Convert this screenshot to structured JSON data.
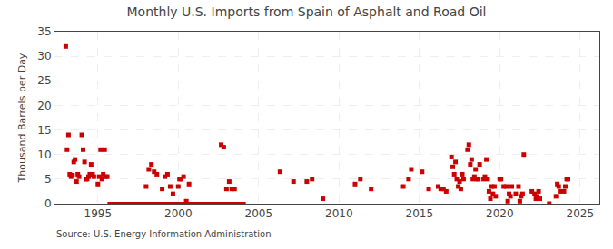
{
  "chart_data": {
    "type": "scatter",
    "title": "Monthly U.S. Imports from Spain of Asphalt and Road Oil",
    "y_label": "Thousand Barrels per Day",
    "annotations": [
      "Source: U.S. Energy Information Administration"
    ],
    "xlim": [
      1992.3,
      2026.2
    ],
    "xticks": [
      1995,
      2000,
      2005,
      2010,
      2015,
      2020,
      2025
    ],
    "ylim": [
      0,
      35
    ],
    "yticks": [
      0,
      5,
      10,
      15,
      20,
      25,
      30,
      35
    ],
    "grid": true,
    "series": [
      {
        "type": "scatter",
        "marker": "square",
        "color": "#cc0000",
        "x": [
          1993.0,
          1993.08,
          1993.17,
          1993.25,
          1993.33,
          1993.42,
          1993.5,
          1993.58,
          1993.67,
          1993.75,
          1993.83,
          1994.0,
          1994.08,
          1994.17,
          1994.25,
          1994.33,
          1994.42,
          1994.5,
          1994.58,
          1994.67,
          1994.75,
          1995.0,
          1995.08,
          1995.17,
          1995.25,
          1995.33,
          1995.42,
          1995.5,
          1995.58,
          1998.0,
          1998.17,
          1998.33,
          1998.5,
          1998.67,
          1999.0,
          1999.17,
          1999.33,
          1999.5,
          1999.67,
          2000.0,
          2000.08,
          2000.17,
          2000.33,
          2000.5,
          2000.67,
          2002.67,
          2002.83,
          2003.0,
          2003.17,
          2003.33,
          2003.5,
          2006.33,
          2007.17,
          2008.0,
          2008.33,
          2009.0,
          2011.0,
          2011.33,
          2012.0,
          2014.0,
          2014.33,
          2014.5,
          2015.17,
          2015.58,
          2016.17,
          2016.33,
          2016.5,
          2016.67,
          2017.0,
          2017.08,
          2017.17,
          2017.25,
          2017.33,
          2017.42,
          2017.5,
          2017.58,
          2017.67,
          2017.75,
          2018.0,
          2018.08,
          2018.17,
          2018.25,
          2018.33,
          2018.42,
          2018.5,
          2018.58,
          2018.67,
          2018.75,
          2019.0,
          2019.08,
          2019.17,
          2019.25,
          2019.33,
          2019.42,
          2019.5,
          2019.58,
          2019.67,
          2019.75,
          2020.0,
          2020.08,
          2020.25,
          2020.42,
          2020.5,
          2020.58,
          2020.67,
          2020.75,
          2021.0,
          2021.17,
          2021.25,
          2021.33,
          2021.42,
          2021.5,
          2022.0,
          2022.17,
          2022.25,
          2022.33,
          2022.42,
          2022.5,
          2023.5,
          2023.58,
          2023.67,
          2023.75,
          2024.0,
          2024.08,
          2024.17,
          2024.25
        ],
        "values": [
          32.0,
          11.0,
          14.0,
          6.0,
          5.5,
          5.8,
          8.5,
          9.0,
          4.5,
          6.0,
          5.5,
          14.0,
          11.0,
          8.5,
          5.0,
          5.0,
          5.5,
          6.0,
          8.0,
          6.0,
          5.5,
          4.0,
          5.5,
          11.0,
          5.0,
          6.0,
          11.0,
          5.5,
          5.5,
          3.5,
          7.0,
          8.0,
          6.5,
          6.0,
          3.0,
          5.5,
          6.0,
          3.5,
          2.0,
          3.5,
          5.0,
          5.0,
          5.5,
          0.5,
          4.0,
          12.0,
          11.5,
          3.0,
          4.5,
          3.0,
          3.0,
          6.5,
          4.5,
          4.5,
          5.0,
          1.0,
          4.0,
          5.0,
          3.0,
          3.5,
          5.0,
          7.0,
          6.5,
          3.0,
          3.5,
          3.0,
          3.0,
          2.5,
          9.5,
          7.5,
          6.0,
          8.5,
          5.0,
          3.5,
          4.5,
          3.0,
          6.0,
          5.0,
          11.0,
          12.0,
          8.0,
          9.0,
          5.0,
          5.5,
          7.0,
          5.0,
          5.0,
          8.0,
          5.0,
          5.5,
          9.0,
          5.0,
          2.5,
          1.0,
          3.5,
          2.0,
          3.5,
          1.5,
          5.0,
          5.0,
          3.5,
          3.5,
          0.5,
          2.0,
          1.5,
          3.5,
          2.0,
          3.5,
          0.5,
          1.5,
          2.0,
          10.0,
          2.5,
          2.0,
          1.0,
          1.5,
          2.5,
          1.0,
          1.5,
          4.0,
          3.5,
          2.5,
          2.5,
          3.5,
          5.0,
          5.0
        ]
      },
      {
        "type": "line",
        "line_style": "solid",
        "color": "#cc0000",
        "x": [
          1995.6,
          2004.2
        ],
        "values": [
          0,
          0
        ]
      },
      {
        "type": "scatter",
        "marker": "square",
        "color": "#cc0000",
        "x": [
          2023.08
        ],
        "values": [
          0
        ]
      }
    ]
  }
}
